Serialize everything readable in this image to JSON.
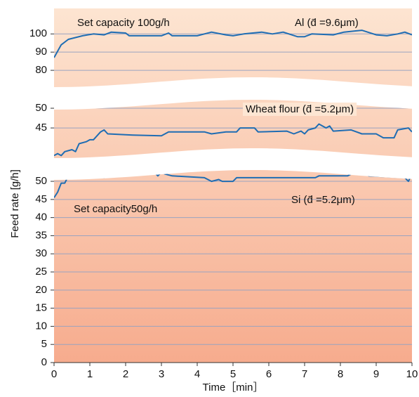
{
  "chart_data": [
    {
      "type": "line",
      "color": "#1f6db3",
      "annotations": [
        "Set capacity 100g/h",
        "Al (d̄ =9.6μm)"
      ],
      "x": [
        0,
        0.2,
        0.4,
        0.8,
        1.1,
        1.4,
        1.6,
        2,
        2.1,
        3,
        3.2,
        3.3,
        4,
        4.2,
        4.4,
        4.8,
        5,
        5.3,
        5.8,
        6.1,
        6.4,
        6.8,
        7,
        7.2,
        7.8,
        8.1,
        8.6,
        9,
        9.3,
        9.6,
        9.8,
        10
      ],
      "values": [
        87,
        94,
        97,
        99,
        100,
        99.5,
        101,
        100.5,
        99,
        99,
        100.5,
        99,
        99,
        100,
        101,
        99.5,
        99,
        100,
        101,
        100,
        101,
        98.5,
        98.5,
        100,
        99.5,
        101,
        102,
        99.5,
        99,
        100,
        101,
        99.5
      ],
      "ylim": [
        70,
        114
      ],
      "yticks": [
        80,
        90,
        100
      ]
    },
    {
      "type": "line",
      "color": "#1f6db3",
      "annotations": [
        "Wheat flour (d̄ =5.2μm)"
      ],
      "x": [
        0,
        0.1,
        0.2,
        0.3,
        0.5,
        0.6,
        0.7,
        0.9,
        1,
        1.1,
        1.3,
        1.4,
        1.5,
        2.2,
        3,
        3.2,
        4.2,
        4.4,
        4.8,
        5.1,
        5.2,
        5.6,
        5.7,
        6.5,
        6.7,
        6.9,
        7,
        7.1,
        7.3,
        7.4,
        7.6,
        7.7,
        7.8,
        8.3,
        8.6,
        9,
        9.2,
        9.5,
        9.6,
        9.9,
        10
      ],
      "values": [
        38,
        38.5,
        38,
        39,
        39.5,
        39,
        41,
        41.5,
        42,
        42,
        44,
        44.5,
        43.5,
        43.2,
        43,
        44,
        44,
        43.5,
        44,
        44,
        45,
        45,
        44,
        44.2,
        43.5,
        44.2,
        43.5,
        44.5,
        45,
        46,
        45,
        45.5,
        44.2,
        44.5,
        43.5,
        43.5,
        42.5,
        42.5,
        44.5,
        45,
        44
      ],
      "ylim": [
        37,
        52.5
      ],
      "yticks": [
        45,
        50
      ]
    },
    {
      "type": "line",
      "color": "#1f6db3",
      "annotations": [
        "Si (d̄ =5.2μm)",
        "Set capacity50g/h"
      ],
      "x_label": "Time［min］",
      "y_label": "Feed rate [g/h]",
      "x": [
        0,
        0.1,
        0.2,
        0.3,
        0.4,
        0.5,
        0.6,
        0.7,
        0.8,
        0.9,
        1,
        1.4,
        1.5,
        1.6,
        2.1,
        2.3,
        2.5,
        2.7,
        2.8,
        2.9,
        3,
        3.1,
        3.3,
        4.2,
        4.4,
        4.6,
        4.7,
        5,
        5.1,
        7.3,
        7.4,
        8.2,
        8.3,
        8.7,
        8.8,
        9.8,
        9.9,
        10
      ],
      "values": [
        45.5,
        47,
        49.5,
        49.5,
        51.5,
        52,
        51.5,
        52.5,
        52,
        52.5,
        51.5,
        51,
        52.5,
        52.5,
        52.5,
        53,
        52,
        52,
        52.5,
        51.5,
        52.5,
        52,
        51.5,
        51,
        50,
        50.5,
        50,
        50,
        51,
        51,
        51.5,
        51.5,
        52,
        52,
        51.5,
        51,
        50,
        52
      ],
      "xlim": [
        0,
        10
      ],
      "xticks": [
        0,
        1,
        2,
        3,
        4,
        5,
        6,
        7,
        8,
        9,
        10
      ],
      "ylim": [
        0,
        53.5
      ],
      "yticks": [
        0,
        5,
        10,
        15,
        20,
        25,
        30,
        35,
        40,
        45,
        50
      ]
    }
  ]
}
